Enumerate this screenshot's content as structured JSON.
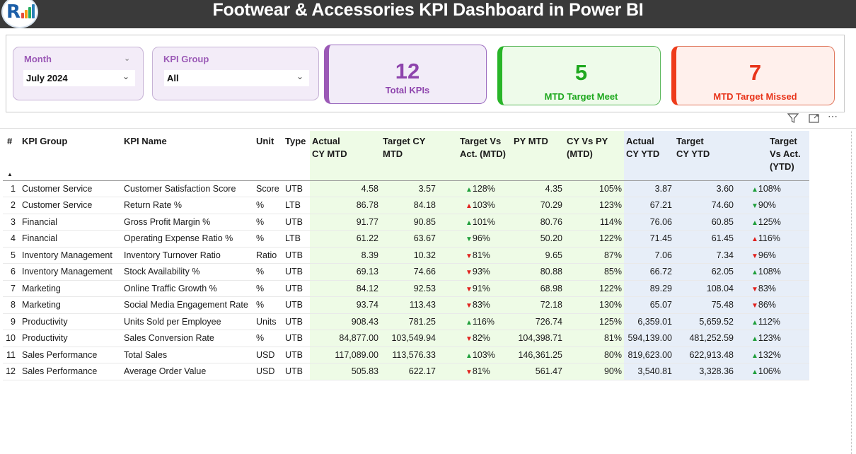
{
  "header": {
    "title": "Footwear & Accessories KPI Dashboard in Power BI",
    "colors": {
      "bar": "#3a3a3a",
      "title_text": "#ffffff"
    }
  },
  "logo": {
    "letter": "R",
    "icon": "logo-icon"
  },
  "filters": {
    "month": {
      "label": "Month",
      "value": "July 2024"
    },
    "kpi_group": {
      "label": "KPI Group",
      "value": "All"
    }
  },
  "cards": {
    "total": {
      "value": "12",
      "label": "Total KPIs",
      "color": "#8e44ad"
    },
    "meet": {
      "value": "5",
      "label": "MTD Target Meet",
      "color": "#1fa81f"
    },
    "missed": {
      "value": "7",
      "label": "MTD Target Missed",
      "color": "#e8341a"
    }
  },
  "visual_icons": [
    "filter-icon",
    "focus-mode-icon",
    "more-options-icon"
  ],
  "table": {
    "columns": [
      "#",
      "KPI Group",
      "KPI Name",
      "Unit",
      "Type",
      "Actual CY MTD",
      "Target CY MTD",
      "Target Vs Act. (MTD)",
      "PY MTD",
      "CY Vs PY (MTD)",
      "Actual CY YTD",
      "Target CY YTD",
      "Target Vs Act. (YTD)"
    ],
    "rows": [
      {
        "n": "1",
        "group": "Customer Service",
        "name": "Customer Satisfaction Score",
        "unit": "Score",
        "type": "UTB",
        "act_mtd": "4.58",
        "tgt_mtd": "3.57",
        "mtd_dir": "up",
        "mtd_pct": "128%",
        "py_mtd": "4.35",
        "cy_vs_py": "105%",
        "act_ytd": "3.87",
        "tgt_ytd": "3.60",
        "ytd_dir": "up",
        "ytd_pct": "108%"
      },
      {
        "n": "2",
        "group": "Customer Service",
        "name": "Return Rate %",
        "unit": "%",
        "type": "LTB",
        "act_mtd": "86.78",
        "tgt_mtd": "84.18",
        "mtd_dir": "up-red",
        "mtd_pct": "103%",
        "py_mtd": "70.29",
        "cy_vs_py": "123%",
        "act_ytd": "67.21",
        "tgt_ytd": "74.60",
        "ytd_dir": "down-green",
        "ytd_pct": "90%"
      },
      {
        "n": "3",
        "group": "Financial",
        "name": "Gross Profit Margin %",
        "unit": "%",
        "type": "UTB",
        "act_mtd": "91.77",
        "tgt_mtd": "90.85",
        "mtd_dir": "up",
        "mtd_pct": "101%",
        "py_mtd": "80.76",
        "cy_vs_py": "114%",
        "act_ytd": "76.06",
        "tgt_ytd": "60.85",
        "ytd_dir": "up",
        "ytd_pct": "125%"
      },
      {
        "n": "4",
        "group": "Financial",
        "name": "Operating Expense Ratio %",
        "unit": "%",
        "type": "LTB",
        "act_mtd": "61.22",
        "tgt_mtd": "63.67",
        "mtd_dir": "down-green",
        "mtd_pct": "96%",
        "py_mtd": "50.20",
        "cy_vs_py": "122%",
        "act_ytd": "71.45",
        "tgt_ytd": "61.45",
        "ytd_dir": "up-red",
        "ytd_pct": "116%"
      },
      {
        "n": "5",
        "group": "Inventory Management",
        "name": "Inventory Turnover Ratio",
        "unit": "Ratio",
        "type": "UTB",
        "act_mtd": "8.39",
        "tgt_mtd": "10.32",
        "mtd_dir": "down",
        "mtd_pct": "81%",
        "py_mtd": "9.65",
        "cy_vs_py": "87%",
        "act_ytd": "7.06",
        "tgt_ytd": "7.34",
        "ytd_dir": "down",
        "ytd_pct": "96%"
      },
      {
        "n": "6",
        "group": "Inventory Management",
        "name": "Stock Availability %",
        "unit": "%",
        "type": "UTB",
        "act_mtd": "69.13",
        "tgt_mtd": "74.66",
        "mtd_dir": "down",
        "mtd_pct": "93%",
        "py_mtd": "80.88",
        "cy_vs_py": "85%",
        "act_ytd": "66.72",
        "tgt_ytd": "62.05",
        "ytd_dir": "up",
        "ytd_pct": "108%"
      },
      {
        "n": "7",
        "group": "Marketing",
        "name": "Online Traffic Growth %",
        "unit": "%",
        "type": "UTB",
        "act_mtd": "84.12",
        "tgt_mtd": "92.53",
        "mtd_dir": "down",
        "mtd_pct": "91%",
        "py_mtd": "68.98",
        "cy_vs_py": "122%",
        "act_ytd": "89.29",
        "tgt_ytd": "108.04",
        "ytd_dir": "down",
        "ytd_pct": "83%"
      },
      {
        "n": "8",
        "group": "Marketing",
        "name": "Social Media Engagement Rate",
        "unit": "%",
        "type": "UTB",
        "act_mtd": "93.74",
        "tgt_mtd": "113.43",
        "mtd_dir": "down",
        "mtd_pct": "83%",
        "py_mtd": "72.18",
        "cy_vs_py": "130%",
        "act_ytd": "65.07",
        "tgt_ytd": "75.48",
        "ytd_dir": "down",
        "ytd_pct": "86%"
      },
      {
        "n": "9",
        "group": "Productivity",
        "name": "Units Sold per Employee",
        "unit": "Units",
        "type": "UTB",
        "act_mtd": "908.43",
        "tgt_mtd": "781.25",
        "mtd_dir": "up",
        "mtd_pct": "116%",
        "py_mtd": "726.74",
        "cy_vs_py": "125%",
        "act_ytd": "6,359.01",
        "tgt_ytd": "5,659.52",
        "ytd_dir": "up",
        "ytd_pct": "112%"
      },
      {
        "n": "10",
        "group": "Productivity",
        "name": "Sales Conversion Rate",
        "unit": "%",
        "type": "UTB",
        "act_mtd": "84,877.00",
        "tgt_mtd": "103,549.94",
        "mtd_dir": "down",
        "mtd_pct": "82%",
        "py_mtd": "104,398.71",
        "cy_vs_py": "81%",
        "act_ytd": "594,139.00",
        "tgt_ytd": "481,252.59",
        "ytd_dir": "up",
        "ytd_pct": "123%"
      },
      {
        "n": "11",
        "group": "Sales Performance",
        "name": "Total Sales",
        "unit": "USD",
        "type": "UTB",
        "act_mtd": "117,089.00",
        "tgt_mtd": "113,576.33",
        "mtd_dir": "up",
        "mtd_pct": "103%",
        "py_mtd": "146,361.25",
        "cy_vs_py": "80%",
        "act_ytd": "819,623.00",
        "tgt_ytd": "622,913.48",
        "ytd_dir": "up",
        "ytd_pct": "132%"
      },
      {
        "n": "12",
        "group": "Sales Performance",
        "name": "Average Order Value",
        "unit": "USD",
        "type": "UTB",
        "act_mtd": "505.83",
        "tgt_mtd": "622.17",
        "mtd_dir": "down",
        "mtd_pct": "81%",
        "py_mtd": "561.47",
        "cy_vs_py": "90%",
        "act_ytd": "3,540.81",
        "tgt_ytd": "3,328.36",
        "ytd_dir": "up",
        "ytd_pct": "106%"
      }
    ]
  }
}
